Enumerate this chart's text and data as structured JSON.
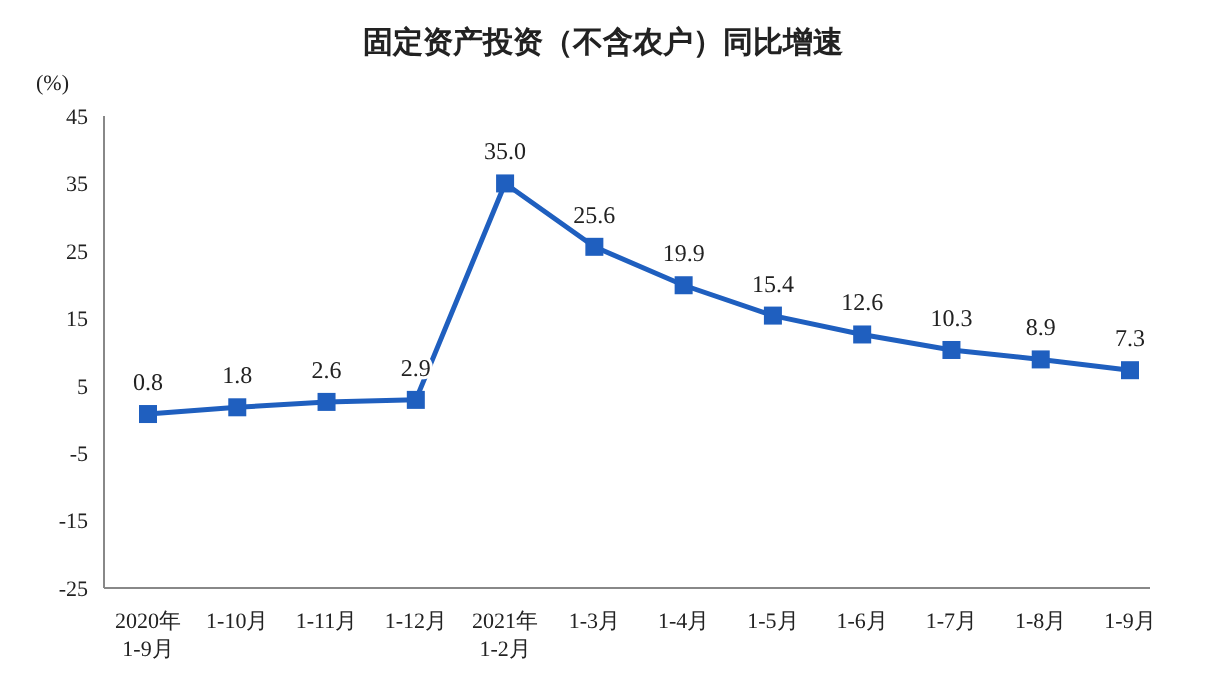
{
  "chart_data": {
    "type": "line",
    "title": "固定资产投资（不含农户）同比增速",
    "ylabel": "(%)",
    "categories": [
      "2020年\n1-9月",
      "1-10月",
      "1-11月",
      "1-12月",
      "2021年\n1-2月",
      "1-3月",
      "1-4月",
      "1-5月",
      "1-6月",
      "1-7月",
      "1-8月",
      "1-9月"
    ],
    "series": [
      {
        "color": "#1f5fbf",
        "values": [
          0.8,
          1.8,
          2.6,
          2.9,
          35.0,
          25.6,
          19.9,
          15.4,
          12.6,
          10.3,
          8.9,
          7.3
        ],
        "value_labels": [
          "0.8",
          "1.8",
          "2.6",
          "2.9",
          "35.0",
          "25.6",
          "19.9",
          "15.4",
          "12.6",
          "10.3",
          "8.9",
          "7.3"
        ]
      }
    ],
    "ylim": [
      -25,
      45
    ],
    "yticks": [
      -25,
      -15,
      -5,
      5,
      15,
      25,
      35,
      45
    ],
    "grid": false,
    "legend": false,
    "marker": "square",
    "line_style": "solid"
  }
}
